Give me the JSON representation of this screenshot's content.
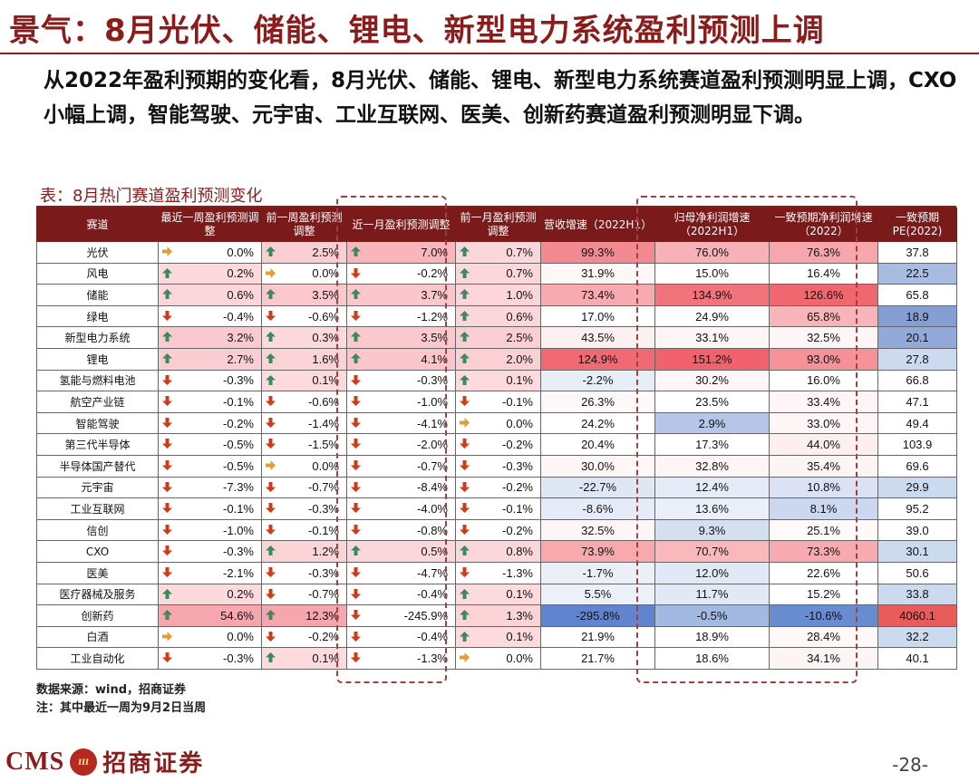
{
  "title": "景气：8月光伏、储能、锂电、新型电力系统盈利预测上调",
  "intro": "从2022年盈利预期的变化看，8月光伏、储能、锂电、新型电力系统赛道盈利预测明显上调，CXO小幅上调，智能驾驶、元宇宙、工业互联网、医美、创新药赛道盈利预测明显下调。",
  "caption": "表：8月热门赛道盈利预测变化",
  "headers": [
    "赛道",
    "最近一周盈利预测调整",
    "前一周盈利预测调整",
    "近一月盈利预测调整",
    "前一月盈利预测调整",
    "营收增速（2022H1）",
    "归母净利润增速（2022H1）",
    "一致预期净利润增速（2022）",
    "一致预期PE(2022)"
  ],
  "colors": {
    "brand": "#8c1c1c",
    "header_bg": "#7a1a1a",
    "up": "#3a8a5a",
    "down": "#d03a1a",
    "flat": "#e0a030",
    "tint_red": "#f4a0a0",
    "tint_blue": "#5b84c8"
  },
  "rows": [
    {
      "name": "光伏",
      "c1": "0.0%",
      "c2": "2.5%",
      "c3": "7.0%",
      "c4": "0.7%",
      "rev": "99.3%",
      "np": "76.0%",
      "cg": "76.3%",
      "pe": "37.8"
    },
    {
      "name": "风电",
      "c1": "0.2%",
      "c2": "0.0%",
      "c3": "-0.2%",
      "c4": "0.7%",
      "rev": "31.9%",
      "np": "15.0%",
      "cg": "16.4%",
      "pe": "22.5"
    },
    {
      "name": "储能",
      "c1": "0.6%",
      "c2": "3.5%",
      "c3": "3.7%",
      "c4": "1.0%",
      "rev": "73.4%",
      "np": "134.9%",
      "cg": "126.6%",
      "pe": "65.8"
    },
    {
      "name": "绿电",
      "c1": "-0.4%",
      "c2": "-0.6%",
      "c3": "-1.2%",
      "c4": "0.6%",
      "rev": "17.0%",
      "np": "24.9%",
      "cg": "65.8%",
      "pe": "18.9"
    },
    {
      "name": "新型电力系统",
      "c1": "3.2%",
      "c2": "0.3%",
      "c3": "3.5%",
      "c4": "2.5%",
      "rev": "43.5%",
      "np": "33.1%",
      "cg": "32.5%",
      "pe": "20.1"
    },
    {
      "name": "锂电",
      "c1": "2.7%",
      "c2": "1.6%",
      "c3": "4.1%",
      "c4": "2.0%",
      "rev": "124.9%",
      "np": "151.2%",
      "cg": "93.0%",
      "pe": "27.8"
    },
    {
      "name": "氢能与燃料电池",
      "c1": "-0.3%",
      "c2": "0.1%",
      "c3": "-0.3%",
      "c4": "0.1%",
      "rev": "-2.2%",
      "np": "30.2%",
      "cg": "16.0%",
      "pe": "66.8"
    },
    {
      "name": "航空产业链",
      "c1": "-0.1%",
      "c2": "-0.6%",
      "c3": "-1.0%",
      "c4": "-0.1%",
      "rev": "26.3%",
      "np": "23.5%",
      "cg": "33.4%",
      "pe": "47.1"
    },
    {
      "name": "智能驾驶",
      "c1": "-0.2%",
      "c2": "-1.4%",
      "c3": "-4.1%",
      "c4": "0.0%",
      "rev": "24.2%",
      "np": "2.9%",
      "cg": "33.0%",
      "pe": "49.4"
    },
    {
      "name": "第三代半导体",
      "c1": "-0.5%",
      "c2": "-1.5%",
      "c3": "-2.0%",
      "c4": "-0.2%",
      "rev": "20.4%",
      "np": "17.3%",
      "cg": "44.0%",
      "pe": "103.9"
    },
    {
      "name": "半导体国产替代",
      "c1": "-0.5%",
      "c2": "0.0%",
      "c3": "-0.7%",
      "c4": "-0.3%",
      "rev": "30.0%",
      "np": "32.8%",
      "cg": "35.4%",
      "pe": "69.6"
    },
    {
      "name": "元宇宙",
      "c1": "-7.3%",
      "c2": "-0.7%",
      "c3": "-8.4%",
      "c4": "-0.2%",
      "rev": "-22.7%",
      "np": "12.4%",
      "cg": "10.8%",
      "pe": "29.9"
    },
    {
      "name": "工业互联网",
      "c1": "-0.1%",
      "c2": "-0.3%",
      "c3": "-4.0%",
      "c4": "-0.1%",
      "rev": "-8.6%",
      "np": "13.6%",
      "cg": "8.1%",
      "pe": "95.2"
    },
    {
      "name": "信创",
      "c1": "-1.0%",
      "c2": "-0.1%",
      "c3": "-0.8%",
      "c4": "-0.2%",
      "rev": "32.5%",
      "np": "9.3%",
      "cg": "25.1%",
      "pe": "39.0"
    },
    {
      "name": "CXO",
      "c1": "-0.3%",
      "c2": "1.2%",
      "c3": "0.5%",
      "c4": "0.8%",
      "rev": "73.9%",
      "np": "70.7%",
      "cg": "73.3%",
      "pe": "30.1"
    },
    {
      "name": "医美",
      "c1": "-2.1%",
      "c2": "-0.3%",
      "c3": "-4.7%",
      "c4": "-1.3%",
      "rev": "-1.7%",
      "np": "12.0%",
      "cg": "22.6%",
      "pe": "50.6"
    },
    {
      "name": "医疗器械及服务",
      "c1": "0.2%",
      "c2": "-0.7%",
      "c3": "-0.4%",
      "c4": "0.1%",
      "rev": "5.5%",
      "np": "11.7%",
      "cg": "15.2%",
      "pe": "33.8"
    },
    {
      "name": "创新药",
      "c1": "54.6%",
      "c2": "12.3%",
      "c3": "-245.9%",
      "c4": "1.3%",
      "rev": "-295.8%",
      "np": "-0.5%",
      "cg": "-10.6%",
      "pe": "4060.1"
    },
    {
      "name": "白酒",
      "c1": "0.0%",
      "c2": "-0.2%",
      "c3": "-0.4%",
      "c4": "0.1%",
      "rev": "21.9%",
      "np": "18.9%",
      "cg": "28.4%",
      "pe": "32.2"
    },
    {
      "name": "工业自动化",
      "c1": "-0.3%",
      "c2": "0.1%",
      "c3": "-1.3%",
      "c4": "0.0%",
      "rev": "21.7%",
      "np": "18.6%",
      "cg": "34.1%",
      "pe": "40.1"
    }
  ],
  "source_note": "数据来源：wind，招商证券",
  "note": "注：其中最近一周为9月2日当周",
  "logo": {
    "latin": "CMS",
    "badge": "ııı",
    "chinese": "招商证券"
  },
  "page_number": "-28-"
}
